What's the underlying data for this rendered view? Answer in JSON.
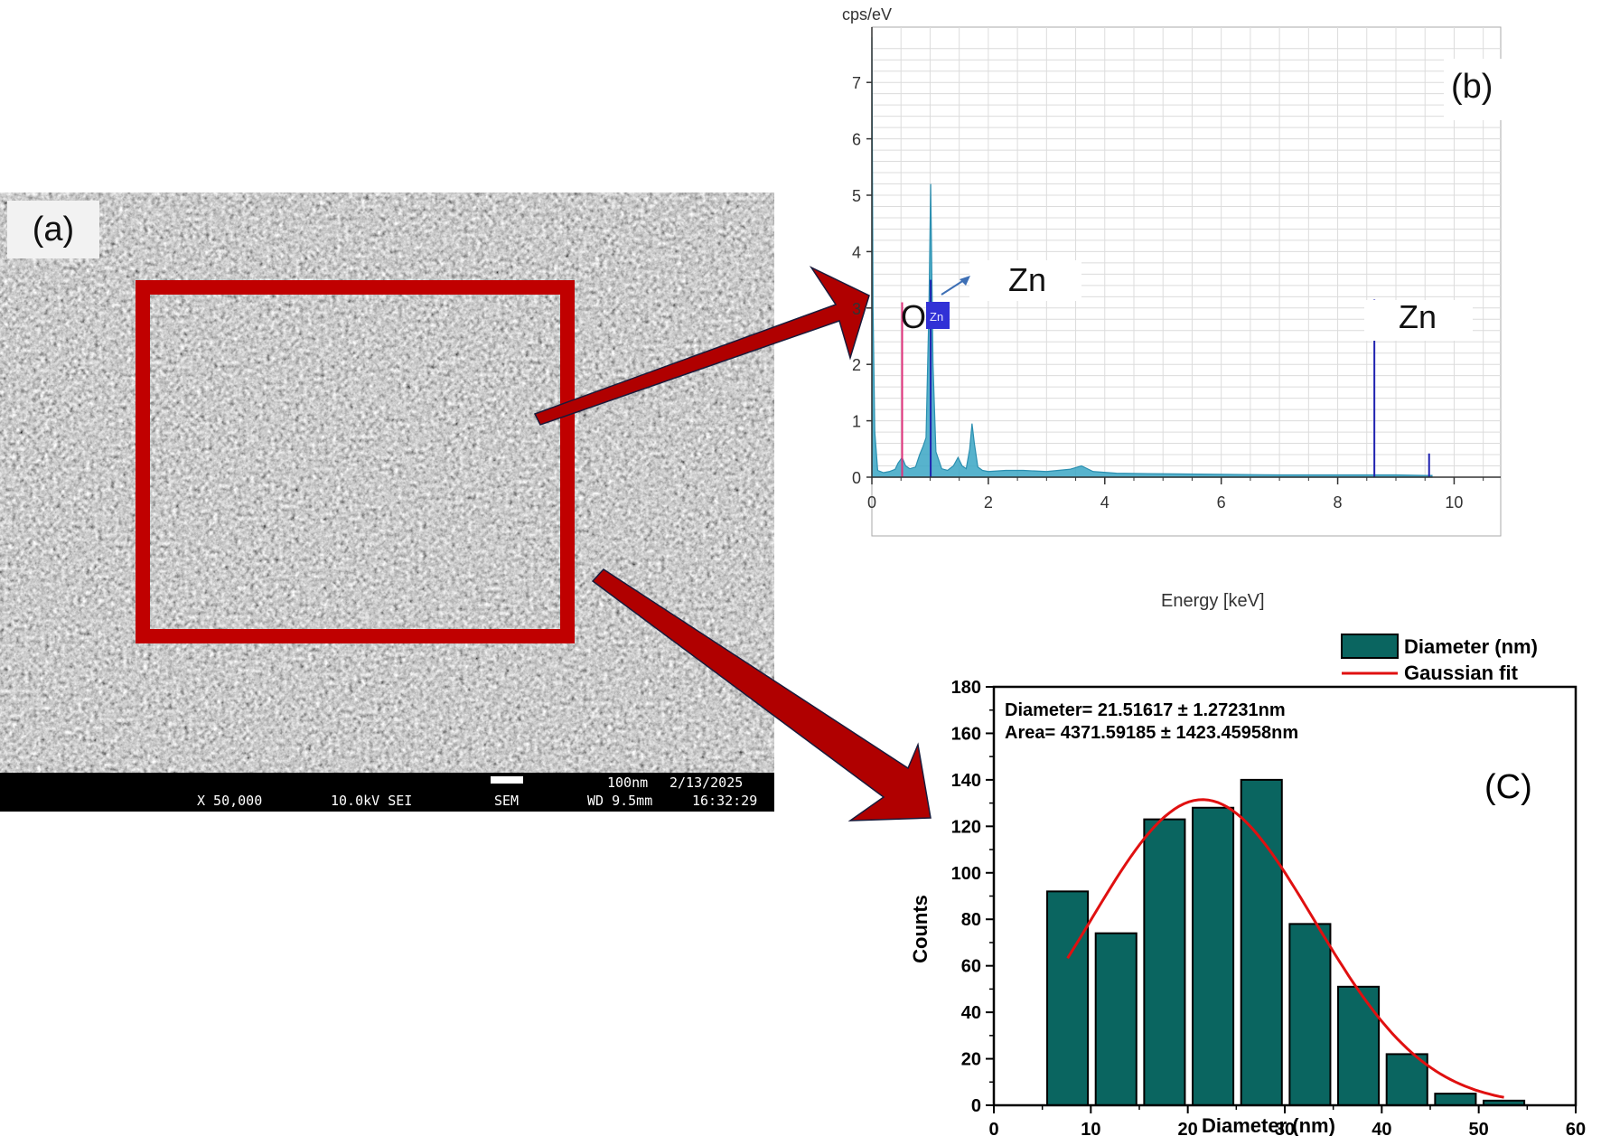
{
  "panel_a": {
    "label": "(a)",
    "infobar": {
      "scale": "100nm",
      "date": "2/13/2025",
      "magnification": "X 50,000",
      "voltage": "10.0kV SEI",
      "mode": "SEM",
      "working_distance": "WD 9.5mm",
      "time": "16:32:29"
    },
    "colors": {
      "box": "#c00000",
      "arrow": "#b00000"
    }
  },
  "panel_b": {
    "label": "(b)",
    "peak_labels": {
      "o": "O",
      "zn_low": "Zn",
      "zn_tag": "Zn",
      "zn_high": "Zn"
    },
    "colors": {
      "spectrum": "#3aa6c4",
      "o_line": "#e0307a",
      "zn_line": "#1f22b0"
    }
  },
  "panel_c": {
    "label": "(C)",
    "annotation_line1": "Diameter= 21.51617 ± 1.27231nm",
    "annotation_line2": "Area= 4371.59185 ± 1423.45958nm",
    "colors": {
      "bar": "#0a6560",
      "fit": "#e01010"
    }
  },
  "chart_data": [
    {
      "type": "area",
      "title": "",
      "xlabel": "Energy [keV]",
      "ylabel": "cps/eV",
      "xlim": [
        0,
        10.8
      ],
      "ylim": [
        0,
        7.8
      ],
      "xticks": [
        0,
        2,
        4,
        6,
        8,
        10
      ],
      "yticks": [
        0,
        1,
        2,
        3,
        4,
        5,
        6,
        7
      ],
      "grid": true,
      "series": [
        {
          "x": [
            0,
            0.02,
            0.05,
            0.1,
            0.2,
            0.3,
            0.4,
            0.45,
            0.52,
            0.58,
            0.65,
            0.75,
            0.82,
            0.88,
            0.93,
            0.98,
            1.01,
            1.05,
            1.1,
            1.2,
            1.3,
            1.4,
            1.48,
            1.55,
            1.62,
            1.68,
            1.72,
            1.76,
            1.82,
            1.9,
            2.0,
            2.3,
            2.6,
            3.0,
            3.4,
            3.6,
            3.7,
            3.8,
            4.2,
            5.0,
            6.0,
            7.0,
            8.0,
            8.6,
            9.0,
            9.5,
            9.62
          ],
          "y": [
            7.8,
            3.0,
            0.8,
            0.12,
            0.08,
            0.1,
            0.14,
            0.25,
            0.35,
            0.2,
            0.15,
            0.18,
            0.4,
            0.55,
            0.7,
            3.0,
            5.2,
            2.0,
            0.45,
            0.15,
            0.12,
            0.2,
            0.35,
            0.2,
            0.15,
            0.5,
            0.95,
            0.6,
            0.18,
            0.12,
            0.1,
            0.12,
            0.12,
            0.1,
            0.14,
            0.2,
            0.15,
            0.1,
            0.07,
            0.06,
            0.05,
            0.04,
            0.04,
            0.04,
            0.04,
            0.03,
            0.03
          ]
        }
      ],
      "markers": [
        {
          "label": "O",
          "x": 0.52,
          "height": 3.1
        },
        {
          "label": "Zn",
          "x": 1.01,
          "height": 3.5
        },
        {
          "label": "Zn",
          "x": 8.63,
          "height": 3.15
        },
        {
          "label": "",
          "x": 9.57,
          "height": 0.42
        }
      ]
    },
    {
      "type": "bar",
      "title": "",
      "xlabel": "Diameter (nm)",
      "ylabel": "Counts",
      "xlim": [
        0,
        60
      ],
      "ylim": [
        0,
        180
      ],
      "xticks": [
        0,
        10,
        20,
        30,
        40,
        50,
        60
      ],
      "yticks": [
        0,
        20,
        40,
        60,
        80,
        100,
        120,
        140,
        160,
        180
      ],
      "bin_width": 4.2,
      "bin_centers": [
        7.6,
        12.6,
        17.6,
        22.6,
        27.6,
        32.6,
        37.6,
        42.6,
        47.6,
        52.6
      ],
      "series": [
        {
          "name": "Diameter (nm)",
          "values": [
            92,
            74,
            123,
            128,
            140,
            78,
            51,
            22,
            5,
            2
          ]
        }
      ],
      "fit": {
        "name": "Gaussian fit",
        "center": 21.51617,
        "peak": 131.5,
        "sigma": 11.5,
        "x_range": [
          7.6,
          52.6
        ]
      },
      "legend": "top-right"
    }
  ]
}
